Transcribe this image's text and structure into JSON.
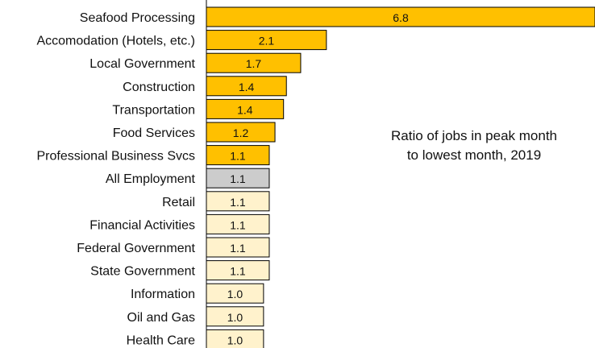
{
  "chart_data": {
    "type": "bar",
    "orientation": "horizontal",
    "title": "Ratio of jobs in peak month to lowest month, 2019",
    "title_lines": [
      "Ratio of jobs in peak month",
      "to lowest month, 2019"
    ],
    "xlabel": "",
    "ylabel": "",
    "xlim": [
      0.0,
      6.8
    ],
    "grid": false,
    "legend": "none",
    "categories": [
      "Seafood Processing",
      "Accomodation (Hotels, etc.)",
      "Local Government",
      "Construction",
      "Transportation",
      "Food Services",
      "Professional Business Svcs",
      "All Employment",
      "Retail",
      "Financial Activities",
      "Federal Government",
      "State Government",
      "Information",
      "Oil and Gas",
      "Health Care"
    ],
    "values": [
      6.8,
      2.1,
      1.65,
      1.4,
      1.35,
      1.2,
      1.1,
      1.1,
      1.1,
      1.1,
      1.1,
      1.1,
      1.0,
      1.0,
      1.0
    ],
    "value_labels": [
      "6.8",
      "2.1",
      "1.7",
      "1.4",
      "1.4",
      "1.2",
      "1.1",
      "1.1",
      "1.1",
      "1.1",
      "1.1",
      "1.1",
      "1.0",
      "1.0",
      "1.0"
    ],
    "bar_groups": [
      "high",
      "high",
      "high",
      "high",
      "high",
      "high",
      "high",
      "all",
      "low",
      "low",
      "low",
      "low",
      "low",
      "low",
      "low"
    ],
    "colors": {
      "high": "#ffc000",
      "all": "#cccccc",
      "low": "#fff2cc",
      "bar_border": "#000000",
      "axis": "#000000"
    }
  }
}
